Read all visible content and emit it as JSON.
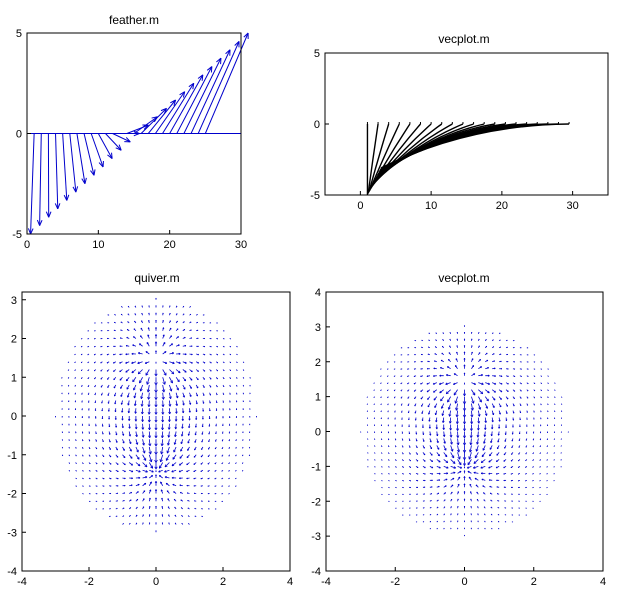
{
  "chart_data": [
    {
      "type": "feather",
      "title": "feather.m",
      "xlim": [
        0,
        30
      ],
      "ylim": [
        -5,
        5
      ],
      "xticks": [
        "0",
        "10",
        "20",
        "30"
      ],
      "yticks": [
        "-5",
        "0",
        "5"
      ],
      "color": "#0000cc",
      "n": 25,
      "base_x_start": 1,
      "base_x_step": 1,
      "u_range": [
        -0.5,
        6.0
      ],
      "v_range": [
        -5.0,
        5.0
      ],
      "grid": false
    },
    {
      "type": "vector",
      "title": "vecplot.m",
      "xlim": [
        -5,
        35
      ],
      "ylim": [
        -5,
        5
      ],
      "xticks": [
        "0",
        "10",
        "20",
        "30"
      ],
      "yticks": [
        "-5",
        "0",
        "5"
      ],
      "color": "#000000",
      "n": 20,
      "base_x": 1,
      "base_y": -5,
      "tip_x_start": 1,
      "tip_x_step": 1.5,
      "grid": false
    },
    {
      "type": "quiver",
      "title": "quiver.m",
      "xlim": [
        -4,
        4
      ],
      "ylim": [
        -4,
        3.2
      ],
      "xticks": [
        "-4",
        "-2",
        "0",
        "2",
        "4"
      ],
      "yticks": [
        "-4",
        "-3",
        "-2",
        "-1",
        "0",
        "1",
        "2",
        "3"
      ],
      "color": "#0000cc",
      "field": "dipole",
      "poles": [
        [
          0,
          1.4
        ],
        [
          0,
          -1.4
        ]
      ],
      "grid_step": 0.2,
      "domain_radius": 3.0,
      "grid": false
    },
    {
      "type": "quiver",
      "title": "vecplot.m",
      "xlim": [
        -4,
        4
      ],
      "ylim": [
        -4,
        4
      ],
      "xticks": [
        "-4",
        "-2",
        "0",
        "2",
        "4"
      ],
      "yticks": [
        "-4",
        "-3",
        "-2",
        "-1",
        "0",
        "1",
        "2",
        "3",
        "4"
      ],
      "color": "#0000cc",
      "field": "dipole",
      "poles": [
        [
          0,
          1.4
        ],
        [
          0,
          -1.0
        ]
      ],
      "grid_step": 0.2,
      "domain_radius": 3.0,
      "grid": false
    }
  ]
}
